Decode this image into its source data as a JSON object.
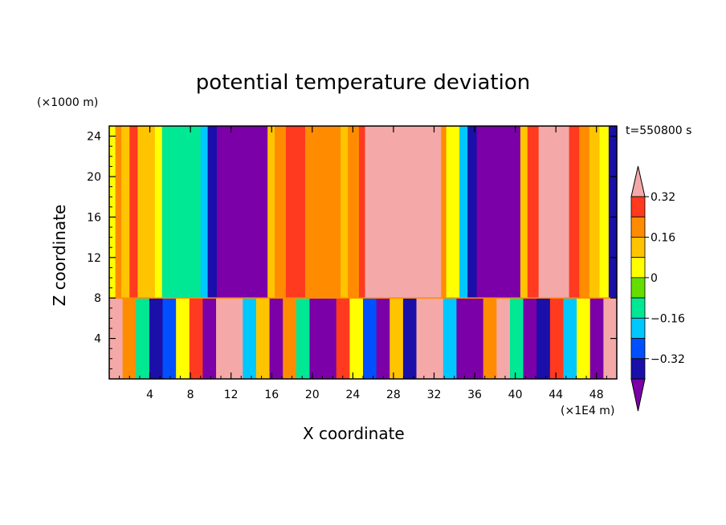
{
  "chart_data": {
    "type": "heatmap",
    "title": "potential temperature deviation",
    "xlabel": "X coordinate",
    "ylabel": "Z coordinate",
    "x_units": "(×1E4 m)",
    "z_units": "(×1000 m)",
    "timestamp": "t=550800 s",
    "xlim": [
      0,
      50
    ],
    "ylim": [
      0,
      25
    ],
    "x_ticks": [
      4,
      8,
      12,
      16,
      20,
      24,
      28,
      32,
      36,
      40,
      44,
      48
    ],
    "x_tick_labels": [
      "4",
      "8",
      "12",
      "16",
      "20",
      "24",
      "28",
      "32",
      "36",
      "40",
      "44",
      "48"
    ],
    "y_ticks": [
      4,
      8,
      12,
      16,
      20,
      24
    ],
    "y_tick_labels": [
      "4",
      "8",
      "12",
      "16",
      "20",
      "24"
    ],
    "boundary_layer_top": 8,
    "colorbar": {
      "levels": [
        -0.4,
        -0.32,
        -0.24,
        -0.16,
        -0.08,
        0,
        0.08,
        0.16,
        0.24,
        0.32,
        0.4
      ],
      "colors": [
        "#7b00a8",
        "#1a0fa8",
        "#0050ff",
        "#00c8ff",
        "#00e894",
        "#66dd00",
        "#ffff00",
        "#ffc400",
        "#ff8c00",
        "#ff3a1e",
        "#f4a9a8"
      ],
      "tick_labels": [
        "0.32",
        "0.16",
        "0",
        "−0.16",
        "−0.32"
      ],
      "tick_values": [
        0.32,
        0.16,
        0,
        -0.16,
        -0.32
      ]
    },
    "upper_layer_columns": {
      "description_values": "value per x-range (x in 1E4 m units) above z=8",
      "breaks_x": [
        0,
        0.6,
        1.2,
        2,
        2.8,
        4.5,
        5.2,
        8.5,
        9,
        9.7,
        10.6,
        15.6,
        16.3,
        17.4,
        19.3,
        22.8,
        23.5,
        24.6,
        25.2,
        26.5,
        28.2,
        32.7,
        33.2,
        34.5,
        35.3,
        36.2,
        37.3,
        40.5,
        41.2,
        42.3,
        43.4,
        45.3,
        46.3,
        47.3,
        48.3,
        49.2,
        50
      ],
      "values": [
        0.08,
        0.24,
        0.16,
        0.32,
        0.16,
        0.08,
        -0.08,
        -0.08,
        -0.16,
        -0.32,
        -0.4,
        0.16,
        0.24,
        0.32,
        0.24,
        0.16,
        0.24,
        0.32,
        0.4,
        0.4,
        0.4,
        0.24,
        0.08,
        -0.16,
        -0.32,
        -0.4,
        -0.4,
        0.16,
        0.32,
        0.4,
        0.4,
        0.32,
        0.24,
        0.16,
        0.08,
        -0.32
      ]
    },
    "lower_layer_values_sample": [
      0.4,
      0.24,
      -0.08,
      -0.32,
      -0.24,
      0.08,
      0.32,
      -0.4,
      0.4,
      0.4,
      -0.16,
      0.16,
      -0.4,
      0.24,
      -0.08,
      -0.4,
      -0.4,
      0.32,
      0.08,
      -0.24,
      -0.4,
      0.16,
      -0.32,
      0.4,
      0.4,
      -0.16,
      -0.4,
      -0.4,
      0.24,
      0.4,
      -0.08,
      -0.4,
      -0.32,
      0.32,
      -0.16,
      0.08,
      -0.4,
      0.4
    ]
  }
}
